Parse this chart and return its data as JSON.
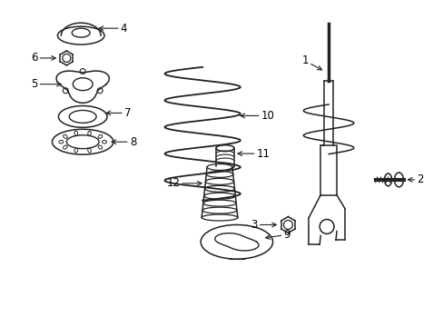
{
  "background_color": "#ffffff",
  "line_color": "#222222",
  "label_color": "#000000",
  "figsize": [
    4.89,
    3.6
  ],
  "dpi": 100,
  "labels": [
    "1",
    "2",
    "3",
    "4",
    "5",
    "6",
    "7",
    "8",
    "9",
    "10",
    "11",
    "12"
  ]
}
